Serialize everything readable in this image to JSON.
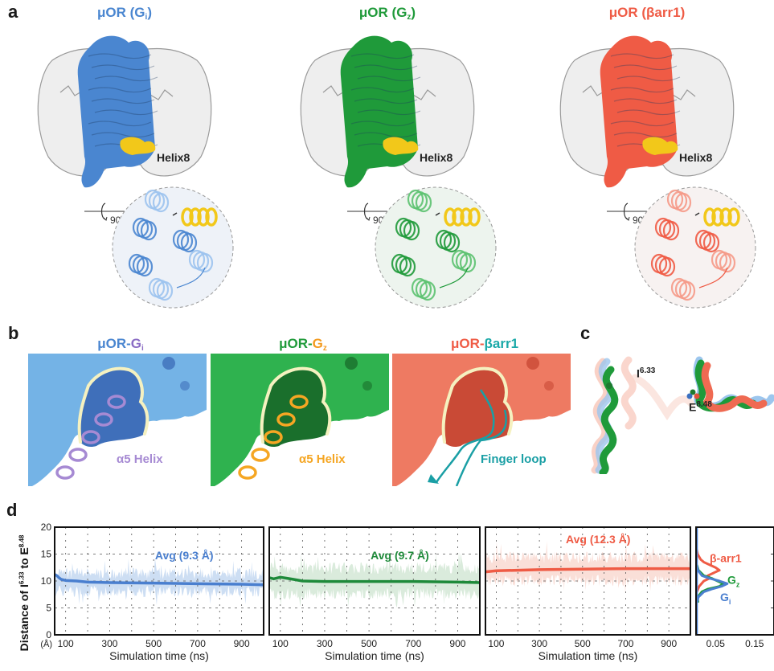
{
  "panels": {
    "a": {
      "label": "a",
      "structures": [
        {
          "title_main": "μOR (G",
          "title_sub": "i",
          "title_end": ")",
          "color": "#4a86d0",
          "light": "#9cc3ee",
          "helix_label": "Helix8"
        },
        {
          "title_main": "μOR (G",
          "title_sub": "z",
          "title_end": ")",
          "color": "#1f9a3a",
          "light": "#5cc270",
          "helix_label": "Helix8"
        },
        {
          "title_main": "μOR (βarr1)",
          "title_sub": "",
          "title_end": "",
          "color": "#ef5b45",
          "light": "#f59a88",
          "helix_label": "Helix8"
        }
      ],
      "rotation_label": "90°",
      "helix8_color": "#f2c81a"
    },
    "b": {
      "label": "b",
      "views": [
        {
          "title_left": "μOR-",
          "title_right": "G",
          "title_sub": "i",
          "left_color": "#4a86d0",
          "right_color": "#8a6cc4",
          "surface": "#74b3e6",
          "cavity": "#3f6fba",
          "partner": "#a68ad3",
          "partner_label": "α5 Helix"
        },
        {
          "title_left": "μOR-",
          "title_right": "G",
          "title_sub": "z",
          "left_color": "#1f9a3a",
          "right_color": "#f39a1e",
          "surface": "#2fb24f",
          "cavity": "#1a6f2c",
          "partner": "#f5a623",
          "partner_label": "α5 Helix"
        },
        {
          "title_left": "μOR-",
          "title_right": "βarr1",
          "title_sub": "",
          "left_color": "#ef5b45",
          "right_color": "#1aa9a8",
          "surface": "#ee7a62",
          "cavity": "#c94a36",
          "partner": "#1a9fa5",
          "partner_label": "Finger loop"
        }
      ]
    },
    "c": {
      "label": "c",
      "residue1_main": "I",
      "residue1_sup": "6.33",
      "residue2_main": "E",
      "residue2_sup": "8.48"
    },
    "d": {
      "label": "d"
    }
  },
  "chart_data": [
    {
      "type": "line",
      "name": "Gi",
      "xlabel": "Simulation time (ns)",
      "ylabel_main": "Distance of I",
      "ylabel_sup1": "6.33",
      "ylabel_mid": " to E",
      "ylabel_sup2": "8.48",
      "y_unit": "(Å)",
      "xlim": [
        50,
        1000
      ],
      "ylim": [
        0,
        20
      ],
      "xticks": [
        100,
        300,
        500,
        700,
        900
      ],
      "yticks": [
        0,
        5,
        10,
        15,
        20
      ],
      "grid": true,
      "color": "#4a7fcf",
      "band_color": "#c4d8f1",
      "annotation": "Avg (9.3 Å)",
      "running_avg": {
        "x": [
          50,
          60,
          70,
          80,
          100,
          150,
          200,
          300,
          500,
          700,
          900,
          1000
        ],
        "y": [
          11.2,
          11.0,
          10.6,
          10.3,
          10.1,
          10.0,
          9.8,
          9.7,
          9.6,
          9.5,
          9.4,
          9.3
        ]
      },
      "band_lower": 7.0,
      "band_upper": 12.5
    },
    {
      "type": "line",
      "name": "Gz",
      "xlabel": "Simulation time (ns)",
      "xlim": [
        50,
        1000
      ],
      "ylim": [
        0,
        20
      ],
      "xticks": [
        100,
        300,
        500,
        700,
        900
      ],
      "yticks": [
        0,
        5,
        10,
        15,
        20
      ],
      "grid": true,
      "color": "#1e8a3a",
      "band_color": "#d4e8d6",
      "annotation": "Avg (9.7 Å)",
      "running_avg": {
        "x": [
          50,
          70,
          100,
          130,
          160,
          200,
          300,
          500,
          700,
          900,
          1000
        ],
        "y": [
          10.6,
          10.4,
          10.7,
          10.5,
          10.3,
          10.0,
          9.9,
          9.9,
          9.9,
          9.8,
          9.7
        ]
      },
      "band_lower": 6.5,
      "band_upper": 13.5
    },
    {
      "type": "line",
      "name": "βarr1",
      "xlabel": "Simulation time (ns)",
      "xlim": [
        50,
        1000
      ],
      "ylim": [
        0,
        20
      ],
      "xticks": [
        100,
        300,
        500,
        700,
        900
      ],
      "yticks": [
        0,
        5,
        10,
        15,
        20
      ],
      "grid": true,
      "color": "#ef5b45",
      "band_color": "#f9d9d1",
      "annotation": "Avg (12.3 Å)",
      "running_avg": {
        "x": [
          50,
          100,
          200,
          300,
          500,
          700,
          900,
          1000
        ],
        "y": [
          11.7,
          11.9,
          12.0,
          12.1,
          12.2,
          12.3,
          12.3,
          12.3
        ]
      },
      "band_lower": 9.0,
      "band_upper": 15.5
    },
    {
      "type": "line",
      "name": "distribution",
      "xlim": [
        0,
        0.2
      ],
      "ylim": [
        0,
        20
      ],
      "xticks": [
        0.05,
        0.15
      ],
      "series": [
        {
          "name": "β-arr1",
          "color": "#ef5b45",
          "y": [
            8,
            9,
            10,
            10.5,
            11,
            11.5,
            12,
            12.5,
            13,
            13.5,
            14,
            15,
            16
          ],
          "density": [
            0.002,
            0.008,
            0.02,
            0.035,
            0.03,
            0.045,
            0.06,
            0.05,
            0.035,
            0.02,
            0.012,
            0.004,
            0.001
          ]
        },
        {
          "name": "Gz",
          "color": "#1f9a3a",
          "y": [
            6,
            7,
            8,
            8.5,
            9,
            9.5,
            10,
            10.5,
            11,
            12,
            13
          ],
          "density": [
            0.005,
            0.004,
            0.015,
            0.03,
            0.06,
            0.07,
            0.055,
            0.04,
            0.02,
            0.006,
            0.002
          ]
        },
        {
          "name": "Gi",
          "color": "#4a7fcf",
          "y": [
            6,
            7,
            8,
            8.5,
            9,
            9.5,
            10,
            10.5,
            11,
            12,
            13
          ],
          "density": [
            0.002,
            0.006,
            0.02,
            0.04,
            0.065,
            0.08,
            0.06,
            0.035,
            0.015,
            0.005,
            0.001
          ]
        }
      ]
    }
  ]
}
